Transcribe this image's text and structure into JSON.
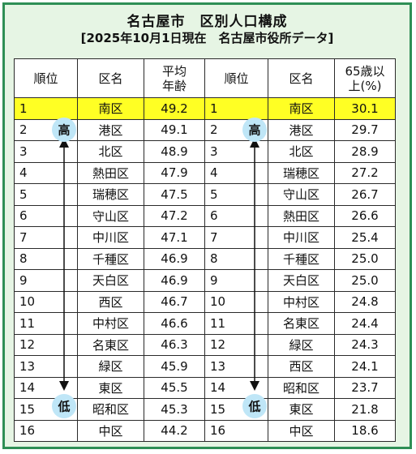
{
  "title": "名古屋市　区別人口構成",
  "subtitle": "[2025年10月1日現在　名古屋市役所データ]",
  "headers": {
    "rank": "順位",
    "ward": "区名",
    "avg_age": "平均\n年齢",
    "over65": "65歳以\n上(%)"
  },
  "badges": {
    "high": "高",
    "low": "低"
  },
  "colors": {
    "frame": "#2e8f55",
    "background": "#e6f5e4",
    "highlight": "#ffff24",
    "badge": "#bfe6f7"
  },
  "avg_age_ranking": [
    {
      "rank": "1",
      "ward": "南区",
      "value": "49.2"
    },
    {
      "rank": "2",
      "ward": "港区",
      "value": "49.1"
    },
    {
      "rank": "3",
      "ward": "北区",
      "value": "48.9"
    },
    {
      "rank": "4",
      "ward": "熱田区",
      "value": "47.9"
    },
    {
      "rank": "5",
      "ward": "瑞穂区",
      "value": "47.5"
    },
    {
      "rank": "6",
      "ward": "守山区",
      "value": "47.2"
    },
    {
      "rank": "7",
      "ward": "中川区",
      "value": "47.1"
    },
    {
      "rank": "8",
      "ward": "千種区",
      "value": "46.9"
    },
    {
      "rank": "9",
      "ward": "天白区",
      "value": "46.9"
    },
    {
      "rank": "10",
      "ward": "西区",
      "value": "46.7"
    },
    {
      "rank": "11",
      "ward": "中村区",
      "value": "46.6"
    },
    {
      "rank": "12",
      "ward": "名東区",
      "value": "46.3"
    },
    {
      "rank": "13",
      "ward": "緑区",
      "value": "45.9"
    },
    {
      "rank": "14",
      "ward": "東区",
      "value": "45.5"
    },
    {
      "rank": "15",
      "ward": "昭和区",
      "value": "45.3"
    },
    {
      "rank": "16",
      "ward": "中区",
      "value": "44.2"
    }
  ],
  "over65_ranking": [
    {
      "rank": "1",
      "ward": "南区",
      "value": "30.1"
    },
    {
      "rank": "2",
      "ward": "港区",
      "value": "29.7"
    },
    {
      "rank": "3",
      "ward": "北区",
      "value": "28.9"
    },
    {
      "rank": "4",
      "ward": "瑞穂区",
      "value": "27.2"
    },
    {
      "rank": "5",
      "ward": "守山区",
      "value": "26.7"
    },
    {
      "rank": "6",
      "ward": "熱田区",
      "value": "26.6"
    },
    {
      "rank": "7",
      "ward": "中川区",
      "value": "25.4"
    },
    {
      "rank": "8",
      "ward": "千種区",
      "value": "25.0"
    },
    {
      "rank": "9",
      "ward": "天白区",
      "value": "25.0"
    },
    {
      "rank": "10",
      "ward": "中村区",
      "value": "24.8"
    },
    {
      "rank": "11",
      "ward": "名東区",
      "value": "24.4"
    },
    {
      "rank": "12",
      "ward": "緑区",
      "value": "24.3"
    },
    {
      "rank": "13",
      "ward": "西区",
      "value": "24.1"
    },
    {
      "rank": "14",
      "ward": "昭和区",
      "value": "23.7"
    },
    {
      "rank": "15",
      "ward": "東区",
      "value": "21.8"
    },
    {
      "rank": "16",
      "ward": "中区",
      "value": "18.6"
    }
  ]
}
